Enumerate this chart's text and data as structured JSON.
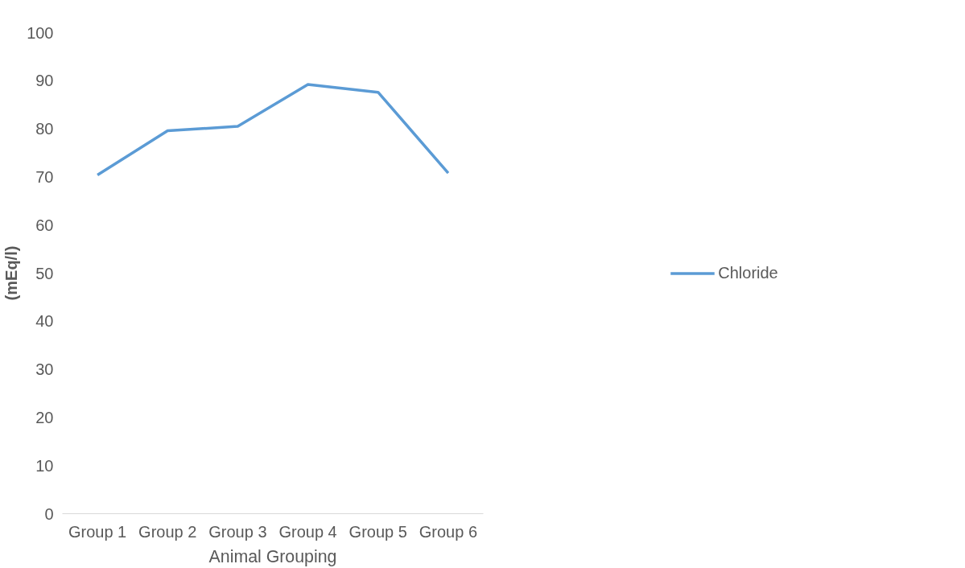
{
  "chart_data": {
    "type": "line",
    "xlabel": "Animal Grouping",
    "ylabel": "(mEq/l)",
    "categories": [
      "Group 1",
      "Group 2",
      "Group 3",
      "Group 4",
      "Group 5",
      "Group 6"
    ],
    "series": [
      {
        "name": "Chloride",
        "color": "#5b9bd5",
        "values": [
          70.4,
          79.6,
          80.5,
          89.2,
          87.6,
          70.8
        ]
      }
    ],
    "ylim": [
      0,
      100
    ],
    "yticks": [
      0,
      10,
      20,
      30,
      40,
      50,
      60,
      70,
      80,
      90,
      100
    ],
    "grid": false,
    "legend": "right",
    "marker": "none",
    "line_style": "solid"
  }
}
